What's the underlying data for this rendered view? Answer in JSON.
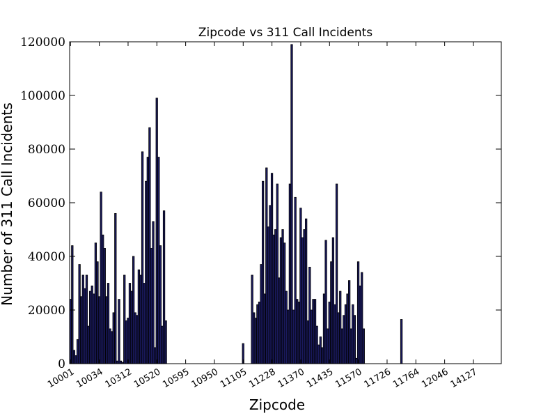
{
  "chart_data": {
    "type": "bar",
    "title": "Zipcode vs 311 Call Incidents",
    "xlabel": "Zipcode",
    "ylabel": "Number of 311 Call Incidents",
    "ylim": [
      0,
      120000
    ],
    "yticks": [
      0,
      20000,
      40000,
      60000,
      80000,
      100000,
      120000
    ],
    "ytick_labels": [
      "0",
      "20000",
      "40000",
      "60000",
      "80000",
      "100000",
      "120000"
    ],
    "xtick_labels": [
      "10001",
      "10034",
      "10312",
      "10520",
      "10595",
      "10950",
      "11105",
      "11228",
      "11370",
      "11435",
      "11570",
      "11726",
      "11764",
      "12046",
      "14127"
    ],
    "bar_color": "#1a1a5e",
    "values": [
      24000,
      44000,
      5000,
      3000,
      9000,
      37000,
      25000,
      33000,
      28000,
      33000,
      14000,
      27000,
      29000,
      26000,
      45000,
      38000,
      25000,
      64000,
      48000,
      43000,
      25000,
      30000,
      13000,
      12000,
      19000,
      56000,
      1000,
      24000,
      1000,
      500,
      33000,
      16000,
      17000,
      30000,
      27000,
      40000,
      19000,
      18000,
      35000,
      33000,
      79000,
      30000,
      68000,
      77000,
      88000,
      43000,
      53000,
      6000,
      99000,
      77000,
      44000,
      14000,
      57000,
      16000,
      0,
      0,
      0,
      0,
      0,
      0,
      0,
      0,
      0,
      0,
      0,
      0,
      0,
      0,
      0,
      0,
      0,
      0,
      0,
      0,
      0,
      0,
      0,
      0,
      0,
      0,
      0,
      0,
      0,
      0,
      0,
      0,
      0,
      0,
      0,
      0,
      0,
      0,
      0,
      0,
      0,
      0,
      7500,
      0,
      0,
      0,
      0,
      33000,
      19000,
      17000,
      22000,
      23000,
      37000,
      68000,
      26000,
      73000,
      51000,
      59000,
      71000,
      48000,
      50000,
      67000,
      32000,
      47000,
      50000,
      45000,
      27000,
      20000,
      67000,
      119000,
      20000,
      62000,
      24000,
      23000,
      58000,
      47000,
      50000,
      54000,
      16000,
      36000,
      20000,
      24000,
      24000,
      14000,
      7000,
      10000,
      6000,
      26000,
      46000,
      13000,
      23000,
      38000,
      47000,
      22000,
      67000,
      19000,
      27000,
      13000,
      18000,
      22000,
      26000,
      31000,
      13000,
      22000,
      18000,
      2000,
      38000,
      29000,
      34000,
      13000,
      0,
      0,
      0,
      0,
      0,
      0,
      0,
      0,
      0,
      0,
      0,
      0,
      0,
      0,
      0,
      0,
      0,
      0,
      0,
      0,
      16500,
      0,
      0,
      0,
      0,
      0,
      0,
      0,
      0,
      0,
      0,
      0,
      0,
      0,
      0,
      0,
      0,
      0,
      0,
      0,
      0,
      0,
      0,
      0,
      0,
      0,
      0,
      0,
      0,
      0,
      0,
      0,
      0,
      0,
      0,
      0,
      0,
      0,
      0,
      0,
      0,
      0,
      0,
      0,
      0,
      0,
      0,
      0,
      0,
      0,
      0,
      0,
      0,
      0,
      0,
      0
    ]
  }
}
